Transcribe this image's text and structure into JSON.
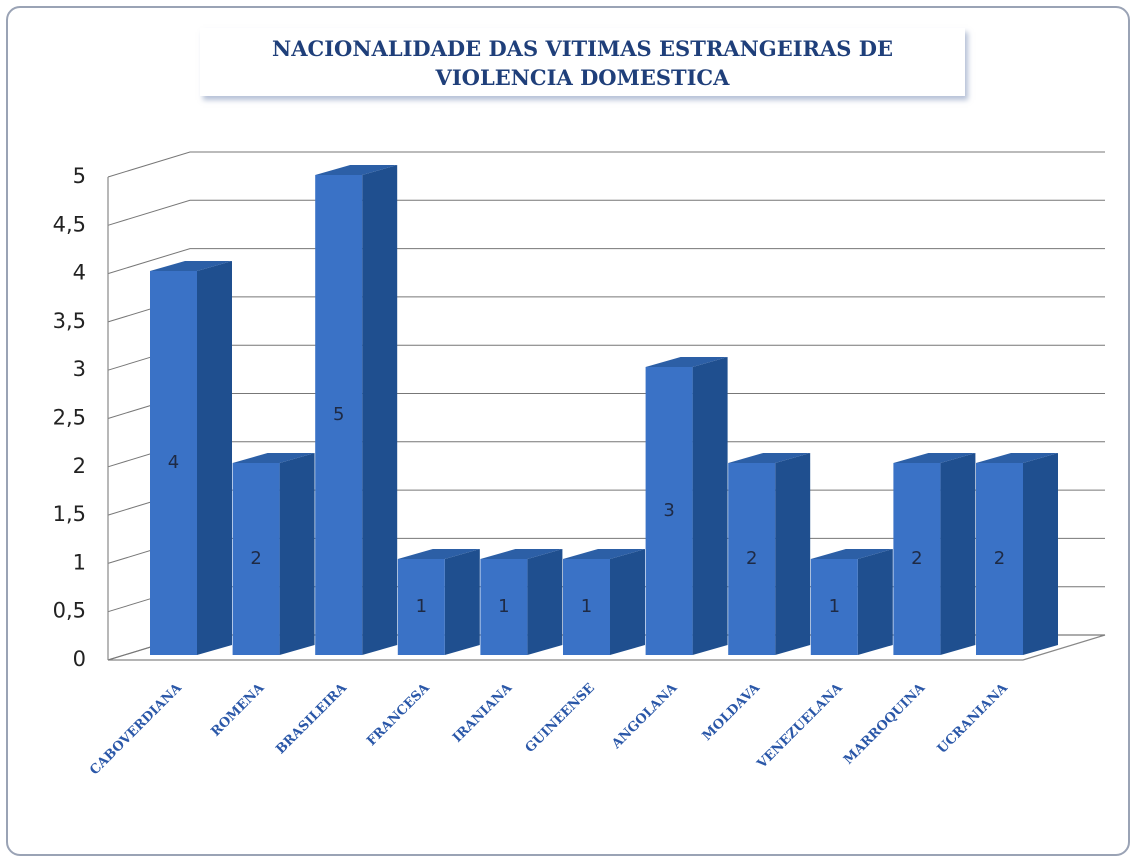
{
  "chart_data": {
    "type": "bar3d",
    "title": "NACIONALIDADE DAS VITIMAS ESTRANGEIRAS DE VIOLENCIA DOMESTICA",
    "categories": [
      "CABOVERDIANA",
      "ROMENA",
      "BRASILEIRA",
      "FRANCESA",
      "IRANIANA",
      "GUINEENSE",
      "ANGOLANA",
      "MOLDAVA",
      "VENEZUELANA",
      "MARROQUINA",
      "UCRANIANA"
    ],
    "values": [
      4,
      2,
      5,
      1,
      1,
      1,
      3,
      2,
      1,
      2,
      2
    ],
    "color": "#3a72c6",
    "ylim": [
      0,
      5
    ],
    "yticks": [
      0,
      {
        "value": 0.5,
        "label": "0,5"
      },
      1,
      {
        "value": 1.5,
        "label": "1,5"
      },
      2,
      {
        "value": 2.5,
        "label": "2,5"
      },
      3,
      {
        "value": 3.5,
        "label": "3,5"
      },
      4,
      {
        "value": 4.5,
        "label": "4,5"
      },
      5
    ],
    "grid": true
  }
}
